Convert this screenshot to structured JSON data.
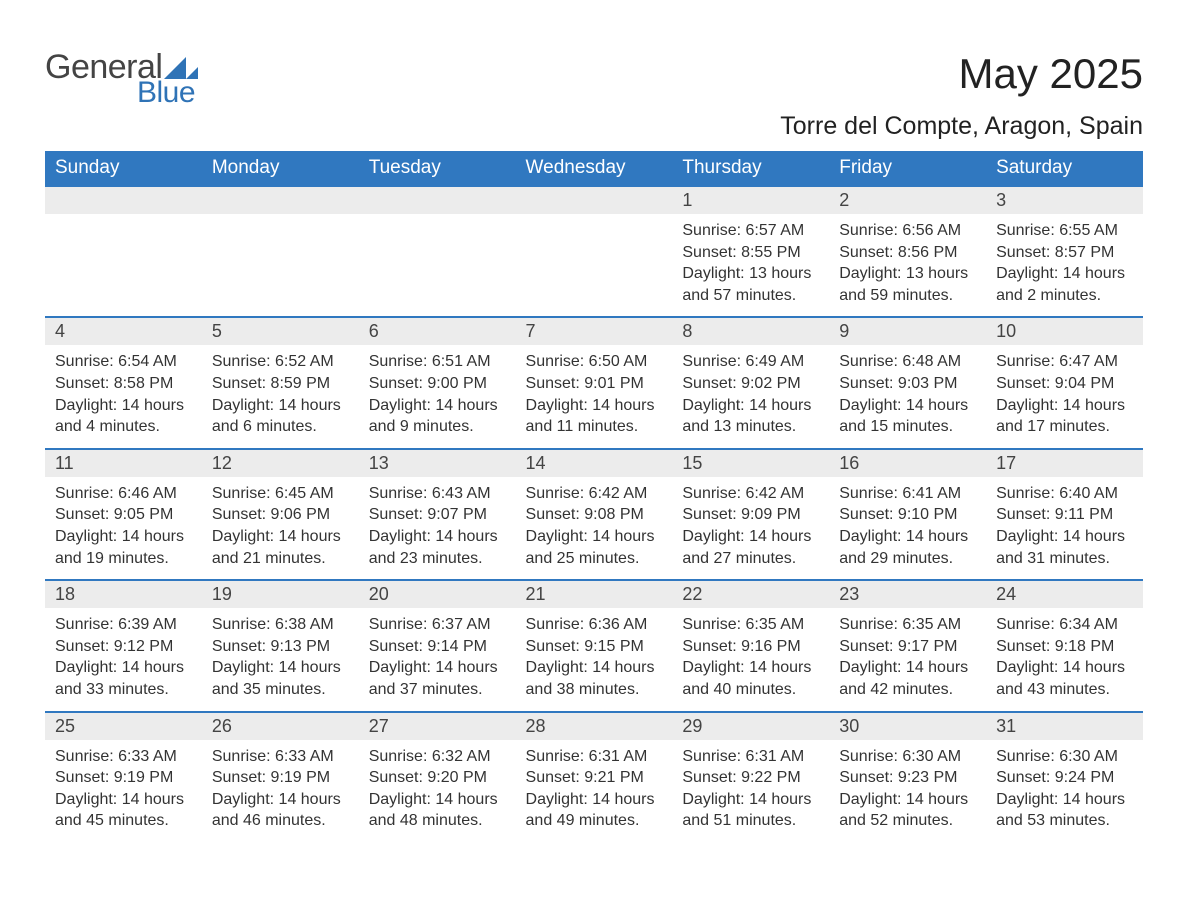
{
  "logo": {
    "text_general": "General",
    "text_blue": "Blue",
    "accent_color": "#2f73b6"
  },
  "title": "May 2025",
  "location": "Torre del Compte, Aragon, Spain",
  "colors": {
    "header_bg": "#3078c0",
    "header_text": "#ffffff",
    "daynum_bg": "#ececec",
    "row_border": "#3078c0",
    "body_text": "#333333",
    "background": "#ffffff"
  },
  "typography": {
    "title_fontsize": 42,
    "location_fontsize": 25,
    "dayheader_fontsize": 19,
    "daynum_fontsize": 18,
    "cell_fontsize": 16
  },
  "layout": {
    "columns": 7,
    "rows": 5,
    "start_day_index": 4
  },
  "day_headers": [
    "Sunday",
    "Monday",
    "Tuesday",
    "Wednesday",
    "Thursday",
    "Friday",
    "Saturday"
  ],
  "days": [
    {
      "n": 1,
      "sunrise": "6:57 AM",
      "sunset": "8:55 PM",
      "daylight": "13 hours and 57 minutes."
    },
    {
      "n": 2,
      "sunrise": "6:56 AM",
      "sunset": "8:56 PM",
      "daylight": "13 hours and 59 minutes."
    },
    {
      "n": 3,
      "sunrise": "6:55 AM",
      "sunset": "8:57 PM",
      "daylight": "14 hours and 2 minutes."
    },
    {
      "n": 4,
      "sunrise": "6:54 AM",
      "sunset": "8:58 PM",
      "daylight": "14 hours and 4 minutes."
    },
    {
      "n": 5,
      "sunrise": "6:52 AM",
      "sunset": "8:59 PM",
      "daylight": "14 hours and 6 minutes."
    },
    {
      "n": 6,
      "sunrise": "6:51 AM",
      "sunset": "9:00 PM",
      "daylight": "14 hours and 9 minutes."
    },
    {
      "n": 7,
      "sunrise": "6:50 AM",
      "sunset": "9:01 PM",
      "daylight": "14 hours and 11 minutes."
    },
    {
      "n": 8,
      "sunrise": "6:49 AM",
      "sunset": "9:02 PM",
      "daylight": "14 hours and 13 minutes."
    },
    {
      "n": 9,
      "sunrise": "6:48 AM",
      "sunset": "9:03 PM",
      "daylight": "14 hours and 15 minutes."
    },
    {
      "n": 10,
      "sunrise": "6:47 AM",
      "sunset": "9:04 PM",
      "daylight": "14 hours and 17 minutes."
    },
    {
      "n": 11,
      "sunrise": "6:46 AM",
      "sunset": "9:05 PM",
      "daylight": "14 hours and 19 minutes."
    },
    {
      "n": 12,
      "sunrise": "6:45 AM",
      "sunset": "9:06 PM",
      "daylight": "14 hours and 21 minutes."
    },
    {
      "n": 13,
      "sunrise": "6:43 AM",
      "sunset": "9:07 PM",
      "daylight": "14 hours and 23 minutes."
    },
    {
      "n": 14,
      "sunrise": "6:42 AM",
      "sunset": "9:08 PM",
      "daylight": "14 hours and 25 minutes."
    },
    {
      "n": 15,
      "sunrise": "6:42 AM",
      "sunset": "9:09 PM",
      "daylight": "14 hours and 27 minutes."
    },
    {
      "n": 16,
      "sunrise": "6:41 AM",
      "sunset": "9:10 PM",
      "daylight": "14 hours and 29 minutes."
    },
    {
      "n": 17,
      "sunrise": "6:40 AM",
      "sunset": "9:11 PM",
      "daylight": "14 hours and 31 minutes."
    },
    {
      "n": 18,
      "sunrise": "6:39 AM",
      "sunset": "9:12 PM",
      "daylight": "14 hours and 33 minutes."
    },
    {
      "n": 19,
      "sunrise": "6:38 AM",
      "sunset": "9:13 PM",
      "daylight": "14 hours and 35 minutes."
    },
    {
      "n": 20,
      "sunrise": "6:37 AM",
      "sunset": "9:14 PM",
      "daylight": "14 hours and 37 minutes."
    },
    {
      "n": 21,
      "sunrise": "6:36 AM",
      "sunset": "9:15 PM",
      "daylight": "14 hours and 38 minutes."
    },
    {
      "n": 22,
      "sunrise": "6:35 AM",
      "sunset": "9:16 PM",
      "daylight": "14 hours and 40 minutes."
    },
    {
      "n": 23,
      "sunrise": "6:35 AM",
      "sunset": "9:17 PM",
      "daylight": "14 hours and 42 minutes."
    },
    {
      "n": 24,
      "sunrise": "6:34 AM",
      "sunset": "9:18 PM",
      "daylight": "14 hours and 43 minutes."
    },
    {
      "n": 25,
      "sunrise": "6:33 AM",
      "sunset": "9:19 PM",
      "daylight": "14 hours and 45 minutes."
    },
    {
      "n": 26,
      "sunrise": "6:33 AM",
      "sunset": "9:19 PM",
      "daylight": "14 hours and 46 minutes."
    },
    {
      "n": 27,
      "sunrise": "6:32 AM",
      "sunset": "9:20 PM",
      "daylight": "14 hours and 48 minutes."
    },
    {
      "n": 28,
      "sunrise": "6:31 AM",
      "sunset": "9:21 PM",
      "daylight": "14 hours and 49 minutes."
    },
    {
      "n": 29,
      "sunrise": "6:31 AM",
      "sunset": "9:22 PM",
      "daylight": "14 hours and 51 minutes."
    },
    {
      "n": 30,
      "sunrise": "6:30 AM",
      "sunset": "9:23 PM",
      "daylight": "14 hours and 52 minutes."
    },
    {
      "n": 31,
      "sunrise": "6:30 AM",
      "sunset": "9:24 PM",
      "daylight": "14 hours and 53 minutes."
    }
  ],
  "labels": {
    "sunrise": "Sunrise",
    "sunset": "Sunset",
    "daylight": "Daylight"
  }
}
